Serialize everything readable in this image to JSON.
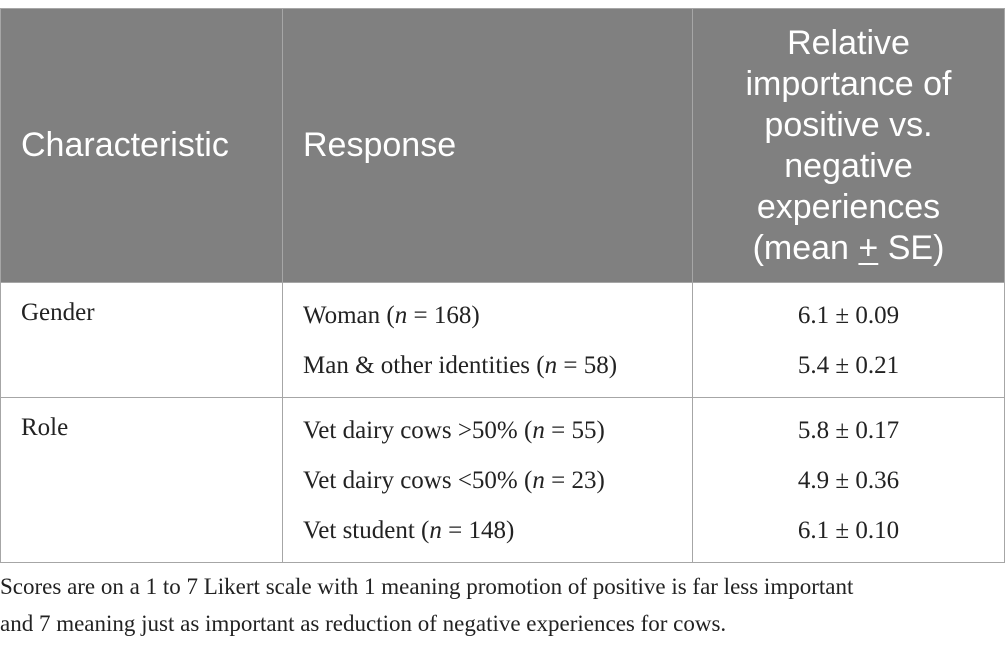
{
  "header": {
    "col1": "Characteristic",
    "col2": "Response",
    "col3_lines": [
      "Relative",
      "importance of",
      "positive vs.",
      "negative",
      "experiences"
    ],
    "col3_last_pre": "(mean ",
    "col3_last_pm": "+",
    "col3_last_post": " SE)"
  },
  "groups": [
    {
      "characteristic": "Gender",
      "rows": [
        {
          "response": "Woman",
          "n": "168",
          "value": "6.1 ± 0.09"
        },
        {
          "response": "Man & other identities",
          "n": "58",
          "value": "5.4 ± 0.21"
        }
      ]
    },
    {
      "characteristic": "Role",
      "rows": [
        {
          "response": "Vet dairy cows >50%",
          "n": "55",
          "value": "5.8 ± 0.17"
        },
        {
          "response": "Vet dairy cows <50%",
          "n": "23",
          "value": "4.9 ± 0.36"
        },
        {
          "response": "Vet student",
          "n": "148",
          "value": "6.1 ± 0.10"
        }
      ]
    }
  ],
  "n_label": "n",
  "n_eq": " = ",
  "caption_lines": [
    "Scores are on a 1 to 7 Likert scale with 1 meaning promotion of positive is far less important",
    "and 7 meaning just as important as reduction of negative experiences for cows."
  ]
}
